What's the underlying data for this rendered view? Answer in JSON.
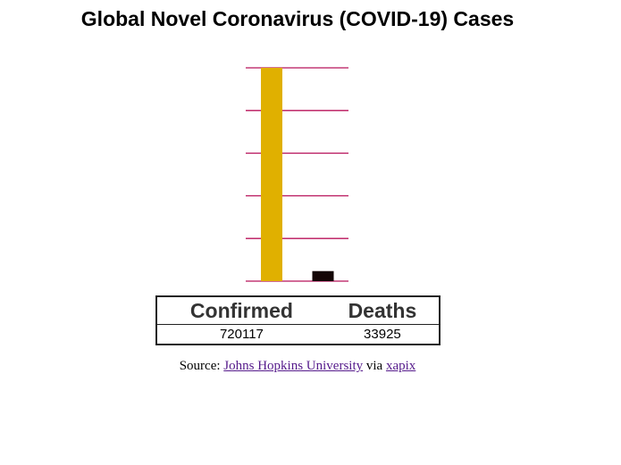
{
  "chart_data": {
    "type": "bar",
    "title": "Global Novel Coronavirus (COVID-19) Cases",
    "categories": [
      "Confirmed",
      "Deaths"
    ],
    "values": [
      720117,
      33925
    ],
    "colors": [
      "#e0b000",
      "#140606"
    ],
    "ylim": [
      0,
      720000
    ],
    "yticks": [
      0,
      144000,
      288000,
      432000,
      576000,
      720000
    ],
    "grid": true,
    "grid_color": "#b8135a"
  },
  "source": {
    "prefix": "Source:",
    "link1": "Johns Hopkins University",
    "middle": "via",
    "link2": "xapix"
  }
}
